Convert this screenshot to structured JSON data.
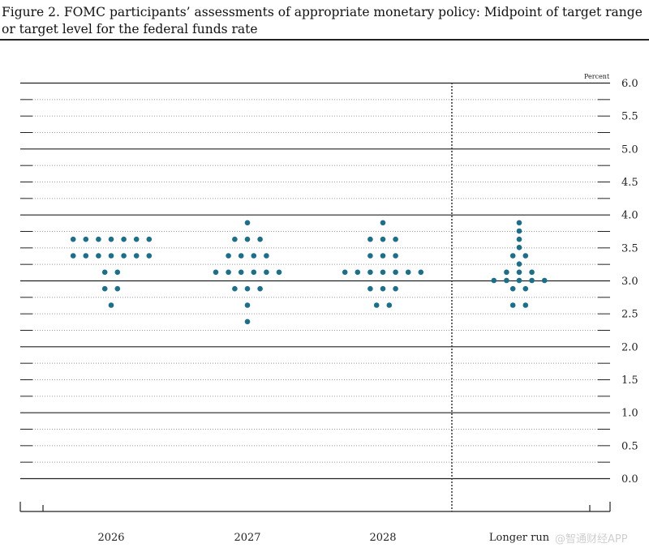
{
  "chart_data": {
    "type": "scatter",
    "title": "Figure 2. FOMC participants’ assessments of appropriate monetary policy: Midpoint of target range or target level for the federal funds rate",
    "ylabel": "Percent",
    "ylim": [
      0.0,
      6.0
    ],
    "yticks": [
      "6.0",
      "5.5",
      "5.0",
      "4.5",
      "4.0",
      "3.5",
      "3.0",
      "2.5",
      "2.0",
      "1.5",
      "1.0",
      "0.5",
      "0.0"
    ],
    "categories": [
      "2026",
      "2027",
      "2028",
      "Longer run"
    ],
    "dot_color": "#1b6f8a",
    "series": [
      {
        "name": "2026",
        "counts": [
          {
            "rate": 3.625,
            "n": 7
          },
          {
            "rate": 3.375,
            "n": 7
          },
          {
            "rate": 3.125,
            "n": 2
          },
          {
            "rate": 2.875,
            "n": 2
          },
          {
            "rate": 2.625,
            "n": 1
          }
        ]
      },
      {
        "name": "2027",
        "counts": [
          {
            "rate": 3.875,
            "n": 1
          },
          {
            "rate": 3.625,
            "n": 3
          },
          {
            "rate": 3.375,
            "n": 4
          },
          {
            "rate": 3.125,
            "n": 6
          },
          {
            "rate": 2.875,
            "n": 3
          },
          {
            "rate": 2.625,
            "n": 1
          },
          {
            "rate": 2.375,
            "n": 1
          }
        ]
      },
      {
        "name": "2028",
        "counts": [
          {
            "rate": 3.875,
            "n": 1
          },
          {
            "rate": 3.625,
            "n": 3
          },
          {
            "rate": 3.375,
            "n": 3
          },
          {
            "rate": 3.125,
            "n": 7
          },
          {
            "rate": 2.875,
            "n": 3
          },
          {
            "rate": 2.625,
            "n": 2
          }
        ]
      },
      {
        "name": "Longer run",
        "counts": [
          {
            "rate": 3.875,
            "n": 1
          },
          {
            "rate": 3.75,
            "n": 1
          },
          {
            "rate": 3.625,
            "n": 1
          },
          {
            "rate": 3.5,
            "n": 1
          },
          {
            "rate": 3.375,
            "n": 2
          },
          {
            "rate": 3.25,
            "n": 1
          },
          {
            "rate": 3.125,
            "n": 3
          },
          {
            "rate": 3.0,
            "n": 5
          },
          {
            "rate": 2.875,
            "n": 2
          },
          {
            "rate": 2.625,
            "n": 2
          }
        ]
      }
    ]
  },
  "watermark": "@智通财经APP"
}
